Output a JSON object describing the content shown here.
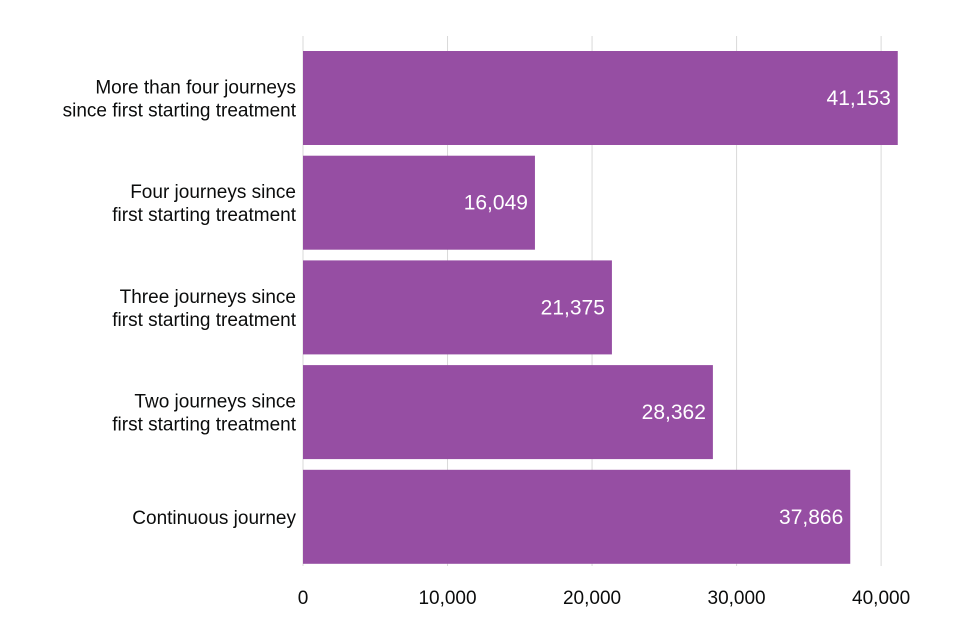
{
  "chart_data": {
    "type": "bar",
    "orientation": "horizontal",
    "categories": [
      [
        "More than four journeys",
        "since first starting treatment"
      ],
      [
        "Four journeys since",
        "first starting treatment"
      ],
      [
        "Three journeys since",
        "first starting treatment"
      ],
      [
        "Two journeys since",
        "first starting treatment"
      ],
      [
        "Continuous journey"
      ]
    ],
    "values": [
      41153,
      16049,
      21375,
      28362,
      37866
    ],
    "data_labels": [
      "41,153",
      "16,049",
      "21,375",
      "28,362",
      "37,866"
    ],
    "xlim": [
      0,
      42000
    ],
    "x_ticks": [
      0,
      10000,
      20000,
      30000,
      40000
    ],
    "x_tick_labels": [
      "0",
      "10,000",
      "20,000",
      "30,000",
      "40,000"
    ],
    "grid": "vertical",
    "legend": "none",
    "colors": {
      "bar": "#964ea3",
      "label": "#ffffff",
      "text": "#0b0c0c",
      "grid": "#d9d9d9"
    }
  }
}
